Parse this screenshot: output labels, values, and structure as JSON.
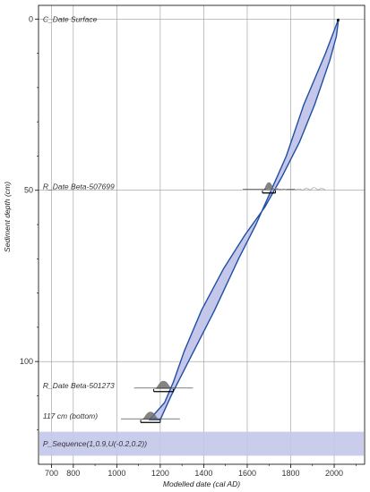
{
  "chart_data": {
    "type": "area",
    "xlabel": "Modelled date (cal AD)",
    "ylabel": "Sediment depth (cm)",
    "xlim": [
      640,
      2140
    ],
    "ylim": [
      130,
      -4
    ],
    "x_ticks": [
      700,
      800,
      1000,
      1200,
      1400,
      1600,
      1800,
      2000
    ],
    "x_tick_labels": [
      "700",
      "800",
      "1000",
      "1200",
      "1400",
      "1600",
      "1800",
      "2000"
    ],
    "y_ticks": [
      0,
      50,
      100
    ],
    "y_tick_labels": [
      "0",
      "50",
      "100"
    ],
    "grid": true,
    "colors": {
      "envelope_fill": "#c4c6ea",
      "envelope_stroke": "#1f4fa3",
      "posterior_fill": "#6e6e6e",
      "likelihood_stroke": "#aaaaaa",
      "sequence_band": "#c4c6ea"
    },
    "envelope": {
      "upper": [
        [
          2020,
          0
        ],
        [
          1960,
          10
        ],
        [
          1860,
          25
        ],
        [
          1780,
          40
        ],
        [
          1710,
          50
        ],
        [
          1640,
          60
        ],
        [
          1560,
          70
        ],
        [
          1450,
          85
        ],
        [
          1330,
          100
        ],
        [
          1250,
          110
        ],
        [
          1200,
          117
        ]
      ],
      "lower": [
        [
          2020,
          0
        ],
        [
          2010,
          5
        ],
        [
          1980,
          12
        ],
        [
          1910,
          25
        ],
        [
          1840,
          36
        ],
        [
          1760,
          46
        ],
        [
          1680,
          55
        ],
        [
          1590,
          63
        ],
        [
          1490,
          73
        ],
        [
          1390,
          85
        ],
        [
          1310,
          97
        ],
        [
          1260,
          106
        ],
        [
          1220,
          112
        ],
        [
          1150,
          117
        ]
      ]
    },
    "dates": [
      {
        "label": "C_Date Surface",
        "depth": 0,
        "range": [
          2012,
          2022
        ]
      },
      {
        "label": "R_Date Beta-507699",
        "depth": 50,
        "range": [
          1670,
          1730
        ],
        "likelihood_range": [
          1680,
          1960
        ]
      },
      {
        "label": "R_Date Beta-501273",
        "depth": 108,
        "range": [
          1170,
          1260
        ]
      },
      {
        "label": "117 cm (bottom)",
        "depth": 117,
        "range": [
          1110,
          1200
        ]
      }
    ],
    "sequence": {
      "label": "P_Sequence(1,0.9,U(-0.2,0.2))"
    }
  }
}
